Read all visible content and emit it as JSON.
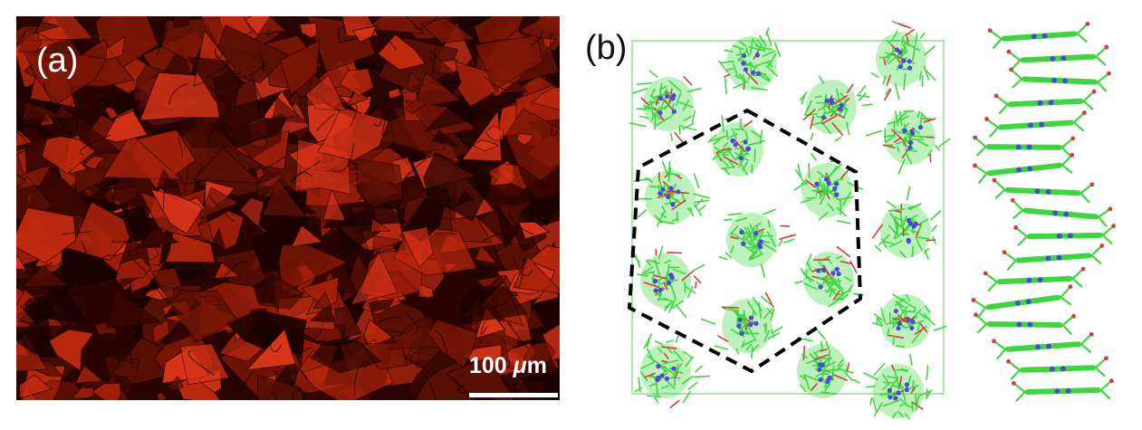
{
  "panel_a": {
    "label": "(a)",
    "scale_bar": {
      "value": "100",
      "unit_greek": "μ",
      "unit": "m"
    },
    "colors": {
      "base": "#2a0400",
      "bright": "#c22a0e",
      "mid": "#7a1606",
      "dark": "#1a0200"
    }
  },
  "panel_b": {
    "label": "(b)",
    "colors": {
      "frame": "#8be08b",
      "carbon": "#3ed63e",
      "nitrogen": "#4a4ad8",
      "oxygen": "#d63a3a",
      "hexagon": "#000000"
    }
  }
}
